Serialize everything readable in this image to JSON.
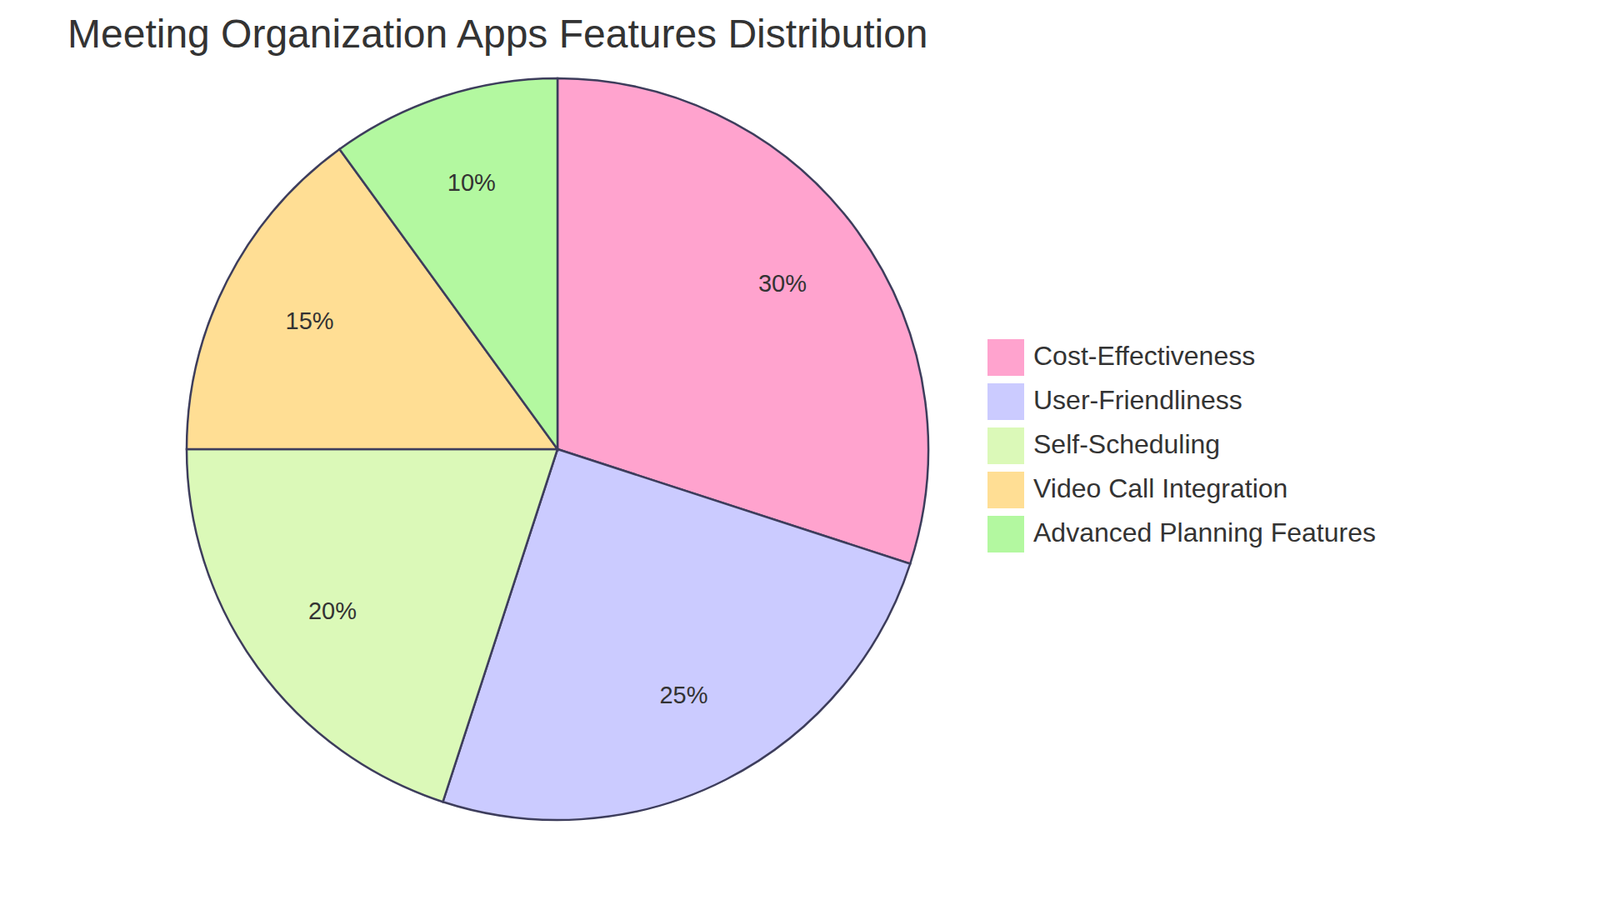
{
  "chart_data": {
    "type": "pie",
    "title": "Meeting Organization Apps Features Distribution",
    "categories": [
      "Cost-Effectiveness",
      "User-Friendliness",
      "Self-Scheduling",
      "Video Call Integration",
      "Advanced Planning Features"
    ],
    "values": [
      30,
      25,
      20,
      15,
      10
    ],
    "value_labels": [
      "30%",
      "25%",
      "20%",
      "15%",
      "10%"
    ],
    "colors": [
      "#ffa3ce",
      "#cbcbff",
      "#dbf9b8",
      "#ffde94",
      "#b3f8a0"
    ],
    "data_labels": true,
    "legend": "right"
  }
}
